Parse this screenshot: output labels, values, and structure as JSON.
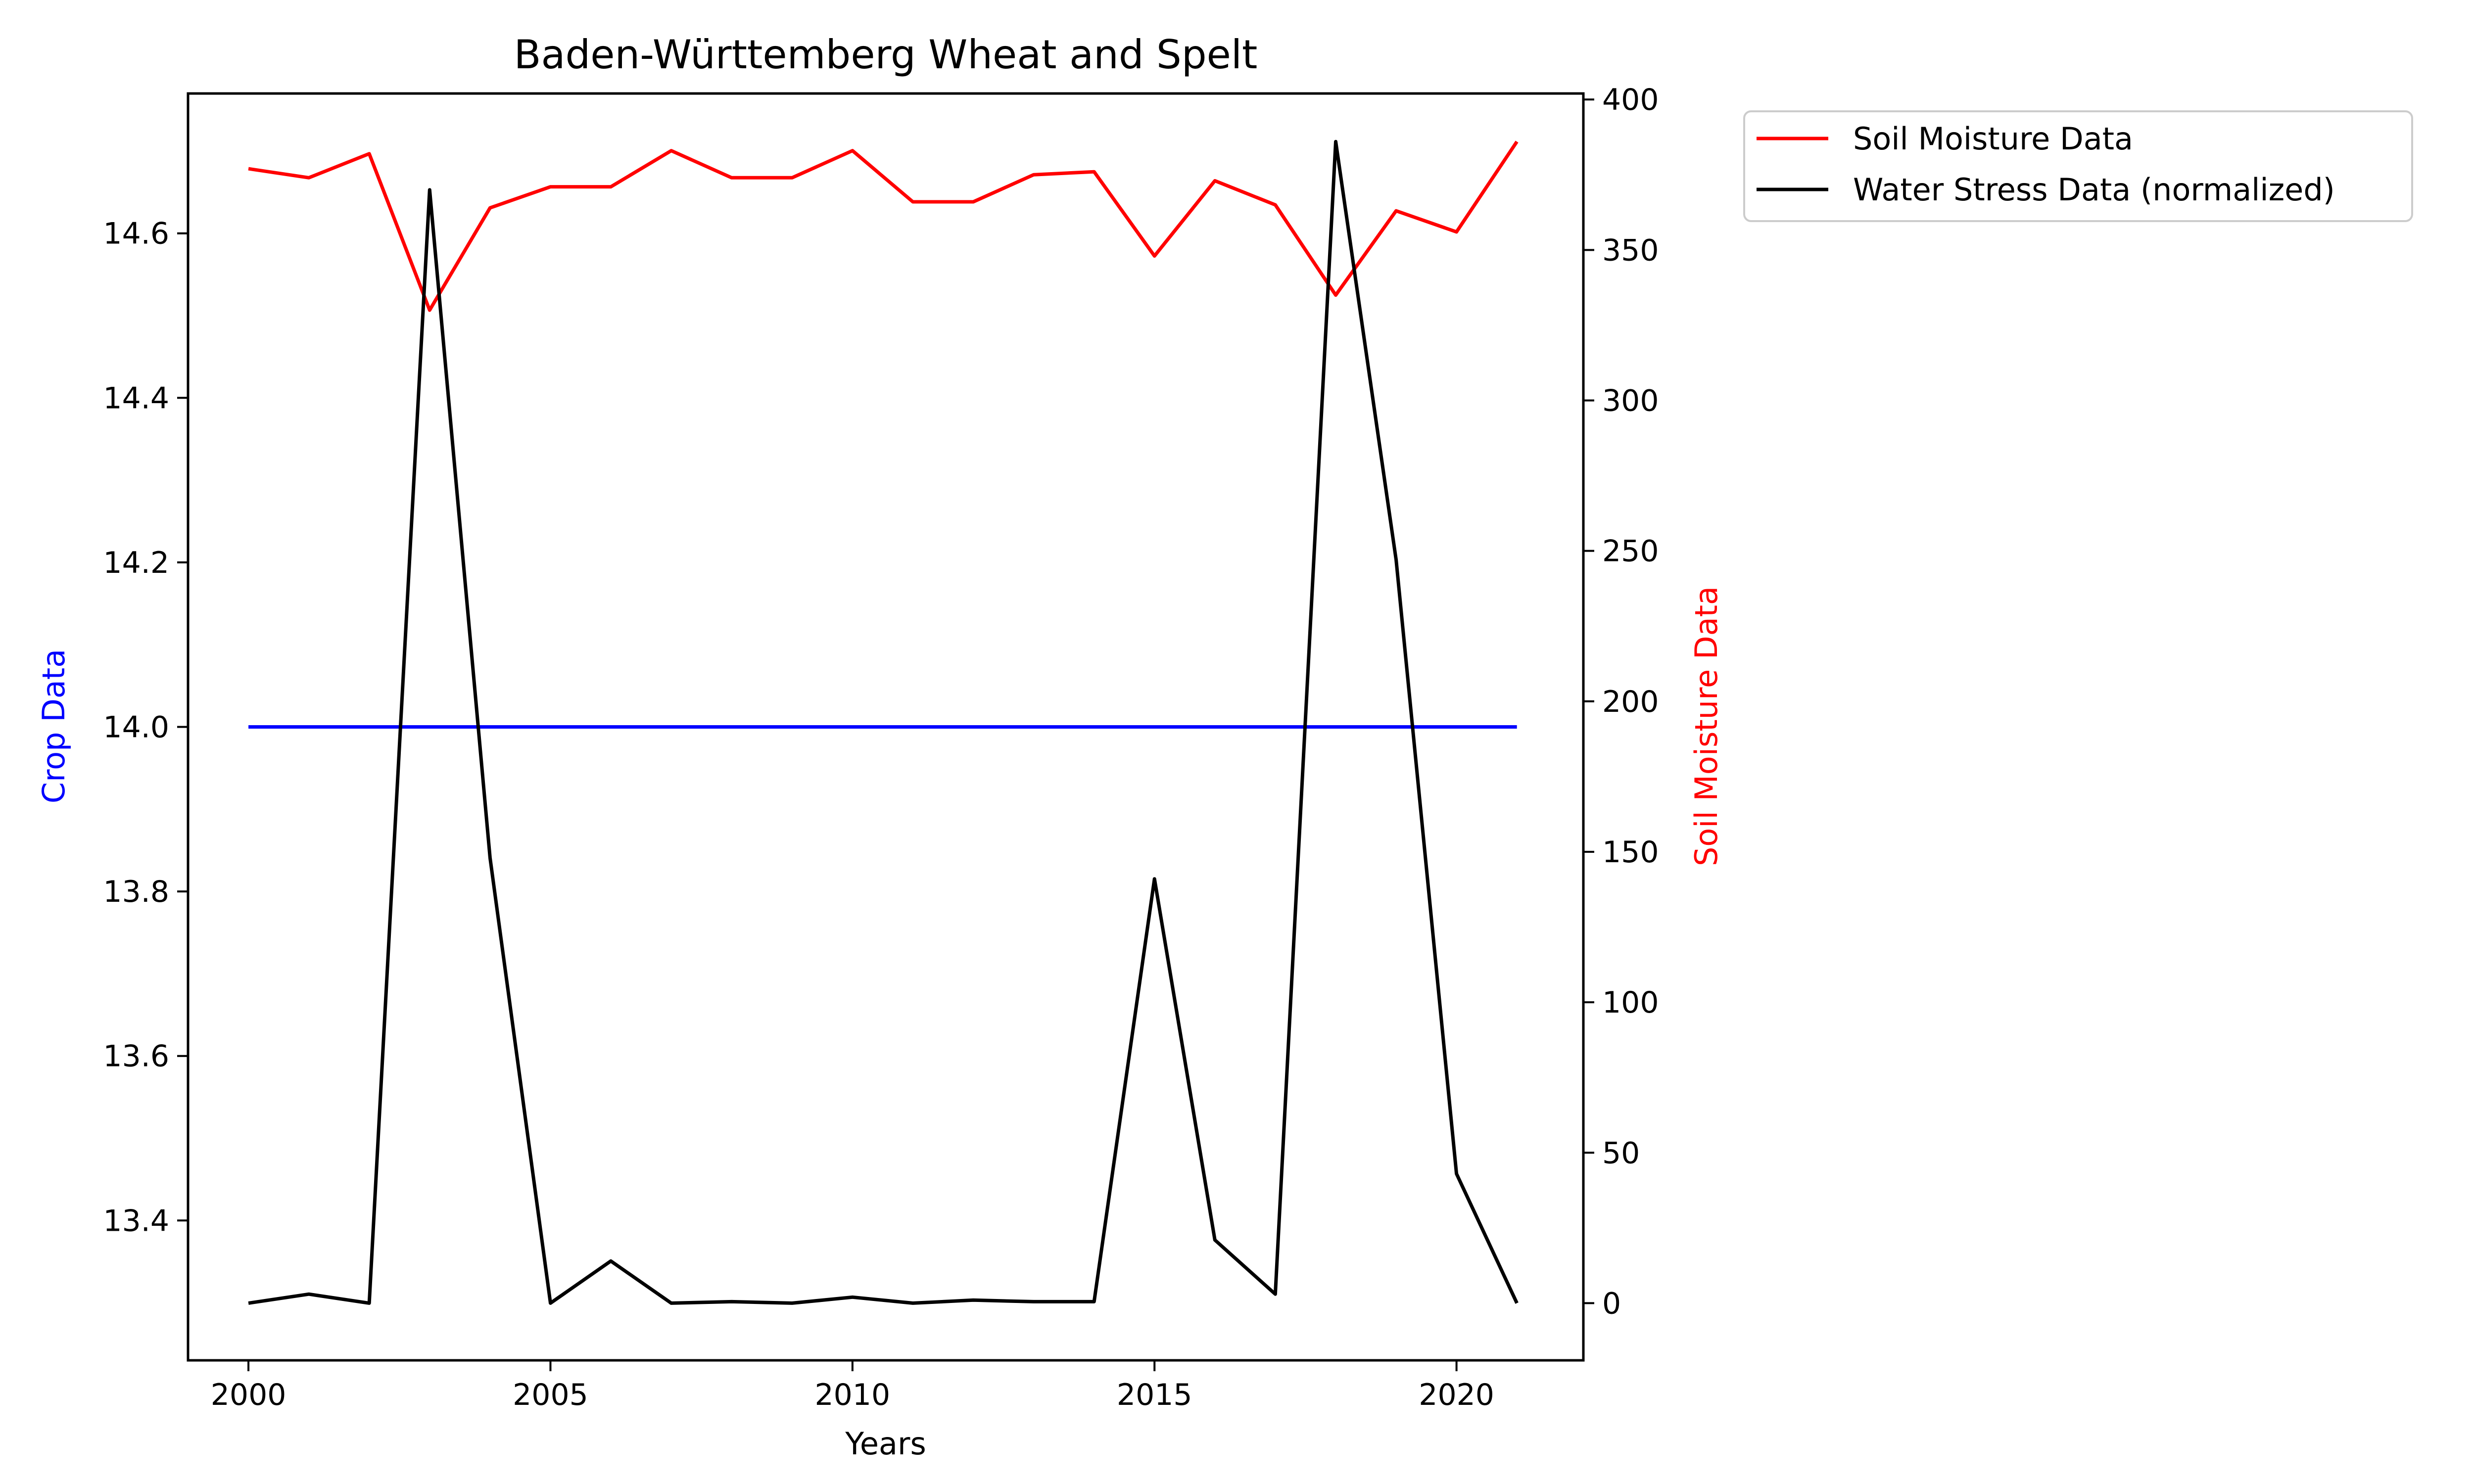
{
  "chart_data": {
    "type": "line",
    "title": "Baden-Württemberg Wheat and Spelt",
    "xlabel": "Years",
    "ylabel_left": "Crop Data",
    "ylabel_right": "Soil Moisture Data",
    "xlim": [
      1999,
      2022.1
    ],
    "xticks": [
      2000,
      2005,
      2010,
      2015,
      2020
    ],
    "ylim_left": [
      13.23,
      14.77
    ],
    "yticks_left": [
      13.4,
      13.6,
      13.8,
      14.0,
      14.2,
      14.4,
      14.6
    ],
    "ylim_right": [
      -19,
      402
    ],
    "yticks_right": [
      0,
      50,
      100,
      150,
      200,
      250,
      300,
      350,
      400
    ],
    "grid": false,
    "legend_position": "outside-top-right",
    "x": [
      2000,
      2001,
      2002,
      2003,
      2004,
      2005,
      2006,
      2007,
      2008,
      2009,
      2010,
      2011,
      2012,
      2013,
      2014,
      2015,
      2016,
      2017,
      2018,
      2019,
      2020,
      2021
    ],
    "series": [
      {
        "axis": "left",
        "color": "#0000ff",
        "values": [
          14.0,
          14.0,
          14.0,
          14.0,
          14.0,
          14.0,
          14.0,
          14.0,
          14.0,
          14.0,
          14.0,
          14.0,
          14.0,
          14.0,
          14.0,
          14.0,
          14.0,
          14.0,
          14.0,
          14.0,
          14.0,
          14.0
        ]
      },
      {
        "name": "Soil Moisture Data",
        "axis": "right",
        "color": "#ff0000",
        "values": [
          377,
          374,
          382,
          330,
          364,
          371,
          371,
          383,
          374,
          374,
          383,
          366,
          366,
          375,
          376,
          348,
          373,
          365,
          335,
          363,
          356,
          386
        ]
      },
      {
        "name": "Water Stress Data (normalized)",
        "axis": "right",
        "color": "#000000",
        "values": [
          0,
          3,
          0,
          370,
          148,
          0,
          14,
          0,
          0.5,
          0,
          2,
          0,
          1,
          0.5,
          0.5,
          141,
          21,
          3,
          386,
          247,
          43,
          0
        ]
      }
    ]
  }
}
